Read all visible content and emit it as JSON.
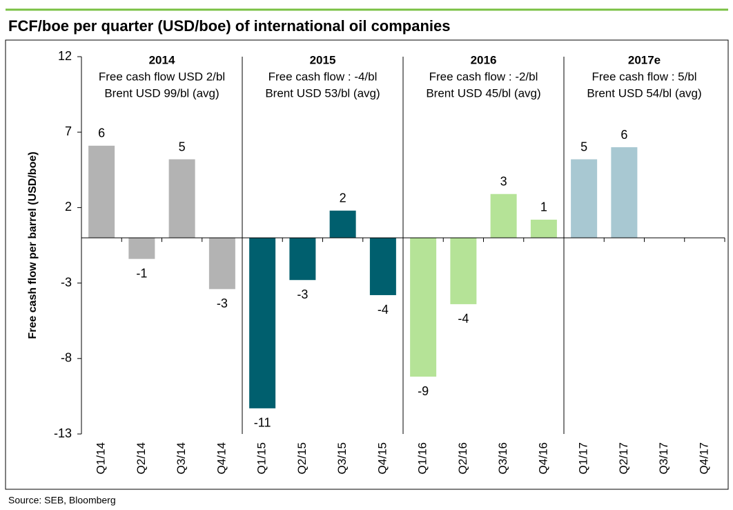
{
  "chart_data": {
    "type": "bar",
    "title": "FCF/boe per quarter (USD/boe) of international oil companies",
    "y_label": "Free cash flow per barrel (USD/boe)",
    "source": "Source: SEB, Bloomberg",
    "categories": [
      "Q1/14",
      "Q2/14",
      "Q3/14",
      "Q4/14",
      "Q1/15",
      "Q2/15",
      "Q3/15",
      "Q4/15",
      "Q1/16",
      "Q2/16",
      "Q3/16",
      "Q4/16",
      "Q1/17",
      "Q2/17",
      "Q3/17",
      "Q4/17"
    ],
    "values": [
      6.1,
      -1.4,
      5.2,
      -3.4,
      -11.3,
      -2.8,
      1.8,
      -3.8,
      -9.2,
      -4.4,
      2.9,
      1.2,
      5.2,
      6.0,
      null,
      null
    ],
    "value_labels": [
      "6",
      "-1",
      "5",
      "-3",
      "-11",
      "-3",
      "2",
      "-4",
      "-9",
      "-4",
      "3",
      "1",
      "5",
      "6",
      null,
      null
    ],
    "groups": [
      {
        "name": "2014",
        "line1": "Free cash flow USD 2/bl",
        "line2": "Brent USD 99/bl (avg)",
        "color": "#b3b3b3"
      },
      {
        "name": "2015",
        "line1": "Free cash flow : -4/bl",
        "line2": "Brent USD 53/bl (avg)",
        "color": "#005f6e"
      },
      {
        "name": "2016",
        "line1": "Free cash flow : -2/bl",
        "line2": "Brent USD 45/bl (avg)",
        "color": "#b5e397"
      },
      {
        "name": "2017e",
        "line1": "Free cash flow : 5/bl",
        "line2": "Brent USD 54/bl (avg)",
        "color": "#a8c8d2"
      }
    ],
    "ylim": [
      -13,
      12
    ],
    "yticks": [
      -13,
      -8,
      -3,
      2,
      7,
      12
    ],
    "grid": false
  }
}
